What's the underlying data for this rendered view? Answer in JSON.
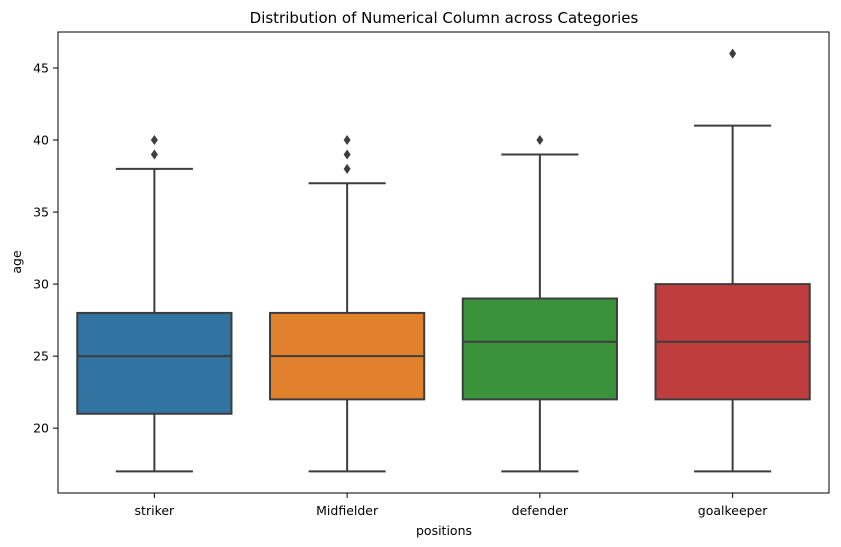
{
  "chart_data": {
    "type": "box",
    "title": "Distribution of Numerical Column across Categories",
    "xlabel": "positions",
    "ylabel": "age",
    "ylim": [
      15.5,
      47.5
    ],
    "yticks": [
      20,
      25,
      30,
      35,
      40,
      45
    ],
    "grid": false,
    "legend": "none",
    "categories": [
      "striker",
      "Midfielder",
      "defender",
      "goalkeeper"
    ],
    "boxes": [
      {
        "category": "striker",
        "whisker_low": 17,
        "q1": 21,
        "median": 25,
        "q3": 28,
        "whisker_high": 38,
        "outliers": [
          39,
          40
        ],
        "color": "#3274a1"
      },
      {
        "category": "Midfielder",
        "whisker_low": 17,
        "q1": 22,
        "median": 25,
        "q3": 28,
        "whisker_high": 37,
        "outliers": [
          38,
          39,
          40
        ],
        "color": "#e1812c"
      },
      {
        "category": "defender",
        "whisker_low": 17,
        "q1": 22,
        "median": 26,
        "q3": 29,
        "whisker_high": 39,
        "outliers": [
          40
        ],
        "color": "#3a923a"
      },
      {
        "category": "goalkeeper",
        "whisker_low": 17,
        "q1": 22,
        "median": 26,
        "q3": 30,
        "whisker_high": 41,
        "outliers": [
          46
        ],
        "color": "#c03d3e"
      }
    ]
  }
}
